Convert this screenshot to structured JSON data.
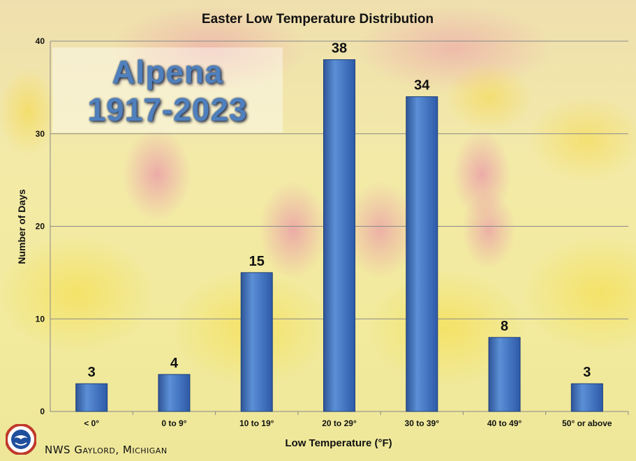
{
  "chart_data": {
    "type": "bar",
    "title": "Easter Low Temperature Distribution",
    "xlabel": "Low Temperature (°F)",
    "ylabel": "Number of Days",
    "categories": [
      "< 0°",
      "0 to 9°",
      "10 to 19°",
      "20 to 29°",
      "30 to 39°",
      "40 to 49°",
      "50° or above"
    ],
    "values": [
      3,
      4,
      15,
      38,
      34,
      8,
      3
    ],
    "ylim": [
      0,
      40
    ],
    "yticks": [
      0,
      10,
      20,
      30,
      40
    ],
    "grid": true,
    "bar_color": "#4472c4"
  },
  "overlay": {
    "station": "Alpena",
    "period": "1917-2023"
  },
  "footer": {
    "office": "NWS Gaylord, Michigan"
  },
  "logo_text": "NATIONAL WEATHER SERVICE"
}
